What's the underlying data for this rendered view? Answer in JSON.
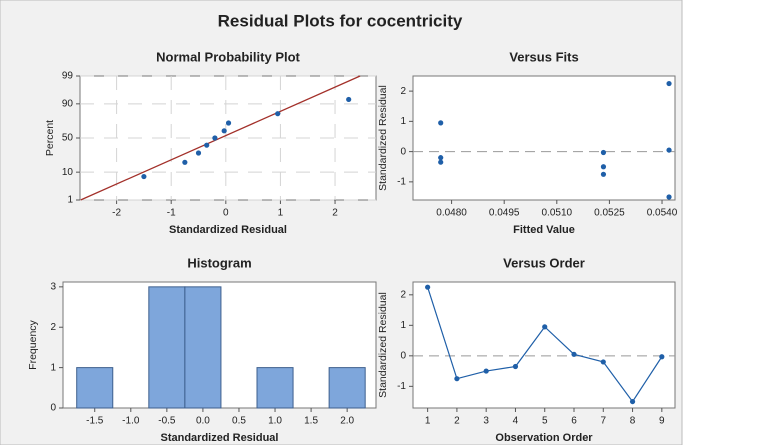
{
  "title": "Residual Plots for cocentricity",
  "chart_data": [
    {
      "type": "scatter",
      "title": "Normal Probability Plot",
      "xlabel": "Standardized Residual",
      "ylabel": "Percent",
      "x": [
        -1.5,
        -0.75,
        -0.5,
        -0.35,
        -0.2,
        -0.03,
        0.05,
        0.95,
        2.25
      ],
      "values": [
        7.4,
        18.1,
        28.7,
        39.4,
        50,
        60.6,
        71.3,
        81.9,
        92.6
      ],
      "color": "#1f5fa8",
      "yscale": "probability",
      "grid": true,
      "fit_line": {
        "mean": -0.1,
        "sd": 1.1,
        "color": "#a3302a"
      },
      "xlim": [
        -2.67,
        2.75
      ],
      "xticks": [
        -2,
        -1,
        0,
        1,
        2
      ],
      "ylim": [
        1,
        99
      ],
      "yticks": [
        1,
        10,
        50,
        90,
        99
      ]
    },
    {
      "type": "scatter",
      "title": "Versus Fits",
      "xlabel": "Fitted Value",
      "ylabel": "Standardized Residual",
      "x": [
        0.04769,
        0.04769,
        0.04769,
        0.05233,
        0.05233,
        0.05233,
        0.0542,
        0.0542,
        0.0542
      ],
      "values": [
        0.95,
        -0.2,
        -0.35,
        -0.03,
        -0.5,
        -0.75,
        2.25,
        0.05,
        -1.5
      ],
      "color": "#1f5fa8",
      "grid": false,
      "hline": 0,
      "xlim": [
        0.0469,
        0.05437
      ],
      "xticks": [
        {
          "value": 0.048,
          "label": "0.0480"
        },
        {
          "value": 0.0495,
          "label": "0.0495"
        },
        {
          "value": 0.051,
          "label": "0.0510"
        },
        {
          "value": 0.0525,
          "label": "0.0525"
        },
        {
          "value": 0.054,
          "label": "0.0540"
        }
      ],
      "ylim": [
        -1.6,
        2.5
      ],
      "yticks": [
        -1,
        0,
        1,
        2
      ]
    },
    {
      "type": "histogram",
      "title": "Histogram",
      "xlabel": "Standardized Residual",
      "ylabel": "Frequency",
      "bins": [
        -1.75,
        -1.25,
        -0.75,
        -0.25,
        0.25,
        0.75,
        1.25,
        1.75,
        2.25
      ],
      "values": [
        1,
        0,
        3,
        3,
        0,
        1,
        0,
        1
      ],
      "color": "#7ea6db",
      "edgecolor": "#3d5f8e",
      "grid": false,
      "xlim": [
        -1.94,
        2.4
      ],
      "xticks": [
        {
          "value": -1.5,
          "label": "-1.5"
        },
        {
          "value": -1,
          "label": "-1.0"
        },
        {
          "value": -0.5,
          "label": "-0.5"
        },
        {
          "value": 0,
          "label": "0.0"
        },
        {
          "value": 0.5,
          "label": "0.5"
        },
        {
          "value": 1,
          "label": "1.0"
        },
        {
          "value": 1.5,
          "label": "1.5"
        },
        {
          "value": 2,
          "label": "2.0"
        }
      ],
      "ylim": [
        0,
        3.12
      ],
      "yticks": [
        0,
        1,
        2,
        3
      ]
    },
    {
      "type": "line",
      "title": "Versus Order",
      "xlabel": "Observation Order",
      "ylabel": "Standardized Residual",
      "x": [
        1,
        2,
        3,
        4,
        5,
        6,
        7,
        8,
        9
      ],
      "values": [
        2.25,
        -0.75,
        -0.5,
        -0.35,
        0.95,
        0.05,
        -0.2,
        -1.5,
        -0.03
      ],
      "color": "#1f5fa8",
      "grid": false,
      "hline": 0,
      "xlim": [
        0.5,
        9.45
      ],
      "xticks": [
        1,
        2,
        3,
        4,
        5,
        6,
        7,
        8,
        9
      ],
      "ylim": [
        -1.71,
        2.42
      ],
      "yticks": [
        -1,
        0,
        1,
        2
      ]
    }
  ]
}
